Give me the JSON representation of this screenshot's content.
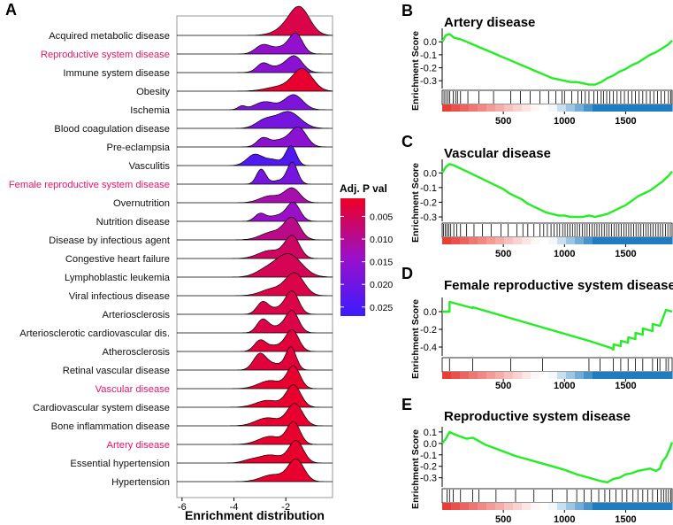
{
  "colors": {
    "highlight": "#e8146c",
    "label": "#111111",
    "gsea_line": "#22ee22",
    "grad_low": "#ee0022",
    "grad_mid": "#9a10c8",
    "grad_high": "#3b1cff",
    "rank_red": "#e8352e",
    "rank_blue": "#1f7cc0"
  },
  "chart_data": [
    {
      "panel": "A",
      "type": "ridgeline",
      "xlabel": "Enrichment distribution",
      "xlim": [
        -6.2,
        -0.2
      ],
      "xticks": [
        -6,
        -4,
        -2
      ],
      "xtick_labels": [
        "-6",
        "-4",
        "-2"
      ],
      "legend": {
        "title": "Adj. P val",
        "position": "right",
        "range": [
          0.001,
          0.027
        ],
        "ticks": [
          0.005,
          0.01,
          0.015,
          0.02,
          0.025
        ],
        "tick_labels": [
          "0.005",
          "0.010",
          "0.015",
          "0.020",
          "0.025"
        ]
      },
      "series": [
        {
          "name": "Acquired metabolic disease",
          "highlight": false,
          "padj": 0.004,
          "bumps": [
            [
              -1.45,
              0.38,
              1.0
            ],
            [
              -1.85,
              0.5,
              0.35
            ]
          ]
        },
        {
          "name": "Reproductive system disease",
          "highlight": true,
          "padj": 0.015,
          "bumps": [
            [
              -2.9,
              0.28,
              0.35
            ],
            [
              -1.6,
              0.25,
              0.75
            ],
            [
              -2.1,
              0.45,
              0.3
            ]
          ]
        },
        {
          "name": "Immune system disease",
          "highlight": false,
          "padj": 0.016,
          "bumps": [
            [
              -2.9,
              0.22,
              0.3
            ],
            [
              -1.65,
              0.3,
              0.62
            ],
            [
              -2.3,
              0.5,
              0.25
            ]
          ]
        },
        {
          "name": "Obesity",
          "highlight": false,
          "padj": 0.002,
          "bumps": [
            [
              -1.35,
              0.38,
              0.92
            ],
            [
              -2.2,
              0.55,
              0.2
            ]
          ]
        },
        {
          "name": "Ischemia",
          "highlight": false,
          "padj": 0.018,
          "bumps": [
            [
              -3.7,
              0.15,
              0.15
            ],
            [
              -1.7,
              0.35,
              0.65
            ],
            [
              -2.8,
              0.4,
              0.35
            ]
          ]
        },
        {
          "name": "Blood coagulation disease",
          "highlight": false,
          "padj": 0.019,
          "bumps": [
            [
              -1.9,
              0.45,
              0.72
            ],
            [
              -2.8,
              0.35,
              0.35
            ]
          ]
        },
        {
          "name": "Pre-eclampsia",
          "highlight": false,
          "padj": 0.016,
          "bumps": [
            [
              -2.9,
              0.22,
              0.32
            ],
            [
              -1.5,
              0.3,
              0.78
            ],
            [
              -2.2,
              0.45,
              0.3
            ]
          ]
        },
        {
          "name": "Vasculitis",
          "highlight": false,
          "padj": 0.024,
          "bumps": [
            [
              -3.2,
              0.3,
              0.48
            ],
            [
              -1.8,
              0.2,
              0.85
            ],
            [
              -2.5,
              0.3,
              0.25
            ]
          ]
        },
        {
          "name": "Female reproductive system disease",
          "highlight": true,
          "padj": 0.019,
          "bumps": [
            [
              -2.95,
              0.18,
              0.65
            ],
            [
              -1.75,
              0.2,
              0.95
            ],
            [
              -2.3,
              0.25,
              0.15
            ]
          ]
        },
        {
          "name": "Overnutrition",
          "highlight": false,
          "padj": 0.012,
          "bumps": [
            [
              -1.75,
              0.3,
              0.62
            ],
            [
              -2.6,
              0.4,
              0.3
            ]
          ]
        },
        {
          "name": "Nutrition disease",
          "highlight": false,
          "padj": 0.014,
          "bumps": [
            [
              -3.0,
              0.2,
              0.3
            ],
            [
              -1.7,
              0.25,
              0.75
            ],
            [
              -2.3,
              0.4,
              0.25
            ]
          ]
        },
        {
          "name": "Disease by infectious agent",
          "highlight": false,
          "padj": 0.009,
          "bumps": [
            [
              -1.75,
              0.3,
              0.9
            ],
            [
              -2.5,
              0.45,
              0.35
            ]
          ]
        },
        {
          "name": "Congestive heart failure",
          "highlight": false,
          "padj": 0.006,
          "bumps": [
            [
              -1.75,
              0.28,
              0.95
            ],
            [
              -2.6,
              0.45,
              0.35
            ]
          ]
        },
        {
          "name": "Lymphoblastic leukemia",
          "highlight": false,
          "padj": 0.005,
          "bumps": [
            [
              -1.9,
              0.5,
              1.0
            ],
            [
              -2.8,
              0.4,
              0.25
            ]
          ]
        },
        {
          "name": "Viral infectious disease",
          "highlight": false,
          "padj": 0.004,
          "bumps": [
            [
              -1.65,
              0.35,
              0.95
            ],
            [
              -2.5,
              0.45,
              0.3
            ]
          ]
        },
        {
          "name": "Arteriosclerosis",
          "highlight": false,
          "padj": 0.004,
          "bumps": [
            [
              -2.9,
              0.22,
              0.5
            ],
            [
              -1.75,
              0.25,
              0.95
            ],
            [
              -2.3,
              0.35,
              0.25
            ]
          ]
        },
        {
          "name": "Arteriosclerotic cardiovascular dis.",
          "highlight": false,
          "padj": 0.004,
          "bumps": [
            [
              -2.9,
              0.22,
              0.55
            ],
            [
              -1.75,
              0.25,
              0.9
            ],
            [
              -2.3,
              0.35,
              0.25
            ]
          ]
        },
        {
          "name": "Atherosclerosis",
          "highlight": false,
          "padj": 0.003,
          "bumps": [
            [
              -3.0,
              0.22,
              0.45
            ],
            [
              -1.75,
              0.25,
              0.9
            ],
            [
              -2.4,
              0.35,
              0.25
            ]
          ]
        },
        {
          "name": "Retinal vascular disease",
          "highlight": false,
          "padj": 0.003,
          "bumps": [
            [
              -3.0,
              0.25,
              0.7
            ],
            [
              -1.8,
              0.2,
              0.98
            ],
            [
              -2.4,
              0.3,
              0.25
            ]
          ]
        },
        {
          "name": "Vascular disease",
          "highlight": true,
          "padj": 0.002,
          "bumps": [
            [
              -1.7,
              0.25,
              0.95
            ],
            [
              -2.6,
              0.45,
              0.35
            ]
          ]
        },
        {
          "name": "Cardiovascular system disease",
          "highlight": false,
          "padj": 0.002,
          "bumps": [
            [
              -1.7,
              0.28,
              0.95
            ],
            [
              -2.7,
              0.45,
              0.3
            ]
          ]
        },
        {
          "name": "Bone inflammation disease",
          "highlight": false,
          "padj": 0.002,
          "bumps": [
            [
              -1.65,
              0.3,
              0.95
            ],
            [
              -2.7,
              0.45,
              0.35
            ]
          ]
        },
        {
          "name": "Artery disease",
          "highlight": true,
          "padj": 0.002,
          "bumps": [
            [
              -1.7,
              0.25,
              0.95
            ],
            [
              -2.6,
              0.45,
              0.35
            ]
          ]
        },
        {
          "name": "Essential hypertension",
          "highlight": false,
          "padj": 0.002,
          "bumps": [
            [
              -1.6,
              0.28,
              0.95
            ],
            [
              -2.6,
              0.45,
              0.35
            ],
            [
              -3.4,
              0.3,
              0.1
            ]
          ]
        },
        {
          "name": "Hypertension",
          "highlight": false,
          "padj": 0.002,
          "bumps": [
            [
              -1.6,
              0.3,
              0.95
            ],
            [
              -2.5,
              0.45,
              0.3
            ]
          ]
        }
      ]
    },
    {
      "panel": "B",
      "type": "line",
      "title": "Artery disease",
      "ylabel": "Enrichment Score",
      "xlim": [
        0,
        1880
      ],
      "ylim": [
        -0.36,
        0.09
      ],
      "yticks": [
        0.0,
        -0.1,
        -0.2,
        -0.3
      ],
      "ytick_labels": [
        "0.0",
        "-0.1",
        "-0.2",
        "-0.3"
      ],
      "xticks": [
        500,
        1000,
        1500
      ],
      "xtick_labels": [
        "500",
        "1000",
        "1500"
      ],
      "x": [
        0,
        30,
        60,
        100,
        150,
        200,
        250,
        300,
        350,
        400,
        450,
        500,
        550,
        600,
        650,
        700,
        750,
        800,
        850,
        900,
        950,
        1000,
        1050,
        1100,
        1150,
        1200,
        1250,
        1300,
        1350,
        1400,
        1450,
        1500,
        1550,
        1600,
        1650,
        1700,
        1750,
        1800,
        1850,
        1880
      ],
      "y": [
        0.0,
        0.05,
        0.06,
        0.03,
        0.02,
        0.0,
        -0.02,
        -0.04,
        -0.06,
        -0.08,
        -0.1,
        -0.12,
        -0.14,
        -0.16,
        -0.18,
        -0.2,
        -0.22,
        -0.24,
        -0.26,
        -0.28,
        -0.29,
        -0.3,
        -0.31,
        -0.31,
        -0.32,
        -0.33,
        -0.33,
        -0.31,
        -0.28,
        -0.26,
        -0.23,
        -0.21,
        -0.18,
        -0.16,
        -0.13,
        -0.1,
        -0.08,
        -0.05,
        -0.02,
        0.01
      ],
      "hits": [
        15,
        30,
        48,
        62,
        90,
        110,
        125,
        150,
        210,
        300,
        420,
        560,
        640,
        720,
        800,
        870,
        930,
        980,
        1000,
        1060,
        1110,
        1140,
        1170,
        1200,
        1240,
        1270,
        1300,
        1320,
        1345,
        1370,
        1400,
        1430,
        1460,
        1490,
        1520,
        1550,
        1580,
        1610,
        1640,
        1670,
        1700,
        1730,
        1760,
        1790,
        1820,
        1850,
        1870
      ]
    },
    {
      "panel": "C",
      "type": "line",
      "title": "Vascular disease",
      "ylabel": "Enrichment Score",
      "xlim": [
        0,
        1880
      ],
      "ylim": [
        -0.33,
        0.08
      ],
      "yticks": [
        0.0,
        -0.1,
        -0.2,
        -0.3
      ],
      "ytick_labels": [
        "0.0",
        "-0.1",
        "-0.2",
        "-0.3"
      ],
      "xticks": [
        500,
        1000,
        1500
      ],
      "xtick_labels": [
        "500",
        "1000",
        "1500"
      ],
      "x": [
        0,
        30,
        60,
        100,
        150,
        200,
        250,
        300,
        350,
        400,
        450,
        500,
        550,
        600,
        650,
        700,
        750,
        800,
        850,
        900,
        950,
        1000,
        1050,
        1100,
        1150,
        1200,
        1250,
        1300,
        1350,
        1400,
        1450,
        1500,
        1550,
        1600,
        1650,
        1700,
        1750,
        1800,
        1850,
        1880
      ],
      "y": [
        0.0,
        0.04,
        0.06,
        0.05,
        0.03,
        0.01,
        -0.01,
        -0.03,
        -0.05,
        -0.07,
        -0.09,
        -0.11,
        -0.14,
        -0.16,
        -0.18,
        -0.21,
        -0.23,
        -0.25,
        -0.27,
        -0.28,
        -0.29,
        -0.29,
        -0.3,
        -0.3,
        -0.3,
        -0.29,
        -0.3,
        -0.29,
        -0.28,
        -0.26,
        -0.24,
        -0.22,
        -0.19,
        -0.16,
        -0.14,
        -0.12,
        -0.09,
        -0.06,
        -0.02,
        0.01
      ],
      "hits": [
        10,
        25,
        40,
        55,
        70,
        95,
        120,
        150,
        200,
        260,
        330,
        400,
        480,
        540,
        610,
        660,
        700,
        750,
        800,
        830,
        860,
        890,
        915,
        940,
        960,
        985,
        1005,
        1025,
        1045,
        1065,
        1085,
        1105,
        1125,
        1145,
        1165,
        1185,
        1205,
        1225,
        1245,
        1265,
        1285,
        1305,
        1325,
        1345,
        1365,
        1385,
        1405,
        1425,
        1445,
        1465,
        1485,
        1505,
        1525,
        1545,
        1565,
        1585,
        1605,
        1625,
        1645,
        1665,
        1685,
        1705,
        1725,
        1745,
        1765,
        1785,
        1805,
        1825,
        1845,
        1865
      ]
    },
    {
      "panel": "D",
      "type": "line",
      "title": "Female reproductive system disease",
      "ylabel": "Enrichment Score",
      "xlim": [
        0,
        1880
      ],
      "ylim": [
        -0.5,
        0.14
      ],
      "yticks": [
        0.0,
        -0.2,
        -0.4
      ],
      "ytick_labels": [
        "0.0",
        "-0.2",
        "-0.4"
      ],
      "xticks": [
        500,
        1000,
        1500
      ],
      "xtick_labels": [
        "500",
        "1000",
        "1500"
      ],
      "x": [
        0,
        60,
        61,
        250,
        251,
        500,
        800,
        1000,
        1200,
        1380,
        1400,
        1401,
        1460,
        1461,
        1520,
        1521,
        1580,
        1581,
        1640,
        1641,
        1720,
        1721,
        1780,
        1781,
        1830,
        1880
      ],
      "y": [
        0.0,
        0.0,
        0.11,
        0.04,
        0.05,
        -0.05,
        -0.17,
        -0.25,
        -0.33,
        -0.41,
        -0.43,
        -0.37,
        -0.39,
        -0.33,
        -0.35,
        -0.29,
        -0.31,
        -0.24,
        -0.26,
        -0.19,
        -0.22,
        -0.14,
        -0.16,
        -0.16,
        0.02,
        0.0
      ],
      "hits": [
        60,
        250,
        560,
        820,
        1200,
        1290,
        1400,
        1460,
        1520,
        1580,
        1640,
        1720,
        1760,
        1780,
        1830,
        1850
      ]
    },
    {
      "panel": "E",
      "type": "line",
      "title": "Reproductive system disease",
      "ylabel": "Enrichment Score",
      "xlim": [
        0,
        1880
      ],
      "ylim": [
        -0.38,
        0.13
      ],
      "yticks": [
        0.1,
        0.0,
        -0.1,
        -0.2,
        -0.3
      ],
      "ytick_labels": [
        "0.1",
        "0.0",
        "-0.1",
        "-0.2",
        "-0.3"
      ],
      "xticks": [
        500,
        1000,
        1500
      ],
      "xtick_labels": [
        "500",
        "1000",
        "1500"
      ],
      "x": [
        0,
        30,
        60,
        100,
        150,
        200,
        250,
        300,
        350,
        400,
        450,
        500,
        600,
        700,
        800,
        900,
        1000,
        1100,
        1200,
        1300,
        1350,
        1400,
        1450,
        1500,
        1550,
        1600,
        1650,
        1700,
        1750,
        1780,
        1800,
        1830,
        1860,
        1880
      ],
      "y": [
        0.0,
        0.04,
        0.1,
        0.08,
        0.06,
        0.04,
        0.05,
        0.02,
        -0.01,
        -0.03,
        -0.05,
        -0.07,
        -0.11,
        -0.14,
        -0.17,
        -0.2,
        -0.23,
        -0.27,
        -0.3,
        -0.33,
        -0.34,
        -0.31,
        -0.3,
        -0.27,
        -0.26,
        -0.24,
        -0.23,
        -0.22,
        -0.24,
        -0.22,
        -0.16,
        -0.12,
        -0.05,
        0.01
      ],
      "hits": [
        40,
        60,
        90,
        150,
        250,
        300,
        440,
        600,
        750,
        900,
        1020,
        1100,
        1160,
        1220,
        1280,
        1330,
        1370,
        1420,
        1470,
        1510,
        1560,
        1600,
        1640,
        1680,
        1720,
        1760,
        1790,
        1810,
        1830,
        1850,
        1870
      ]
    }
  ]
}
